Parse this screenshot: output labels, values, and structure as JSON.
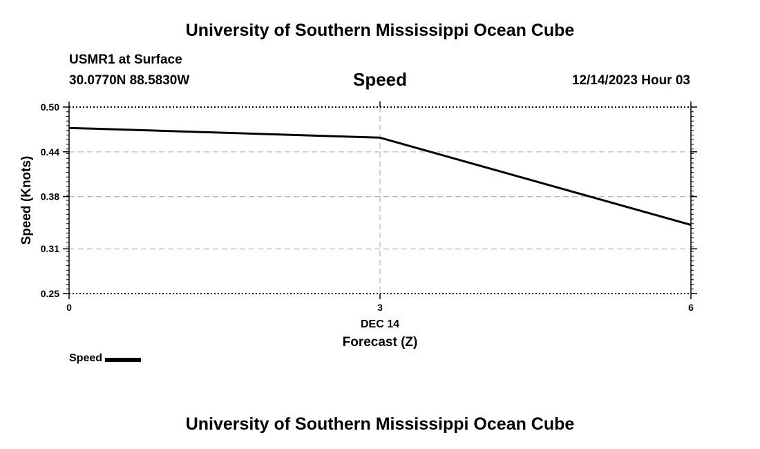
{
  "header": {
    "title": "University of Southern Mississippi Ocean Cube",
    "station": "USMR1 at Surface",
    "coords": "30.0770N  88.5830W",
    "variable": "Speed",
    "datetime": "12/14/2023 Hour 03"
  },
  "footer": {
    "title": "University of Southern Mississippi Ocean Cube"
  },
  "legend": {
    "label": "Speed",
    "color": "#000000"
  },
  "chart_data": {
    "type": "line",
    "title": "Speed",
    "xlabel": "Forecast (Z)",
    "xlabel_date": "DEC 14",
    "ylabel": "Speed (Knots)",
    "xlim": [
      0,
      6
    ],
    "ylim": [
      0.25,
      0.5
    ],
    "xticks": [
      "0",
      "3",
      "6"
    ],
    "yticks": [
      "0.50",
      "0.44",
      "0.38",
      "0.31",
      "0.25"
    ],
    "grid": true,
    "legend_position": "bottom-left",
    "series": [
      {
        "name": "Speed",
        "x": [
          0,
          3,
          6
        ],
        "values": [
          0.472,
          0.459,
          0.342
        ]
      }
    ]
  }
}
